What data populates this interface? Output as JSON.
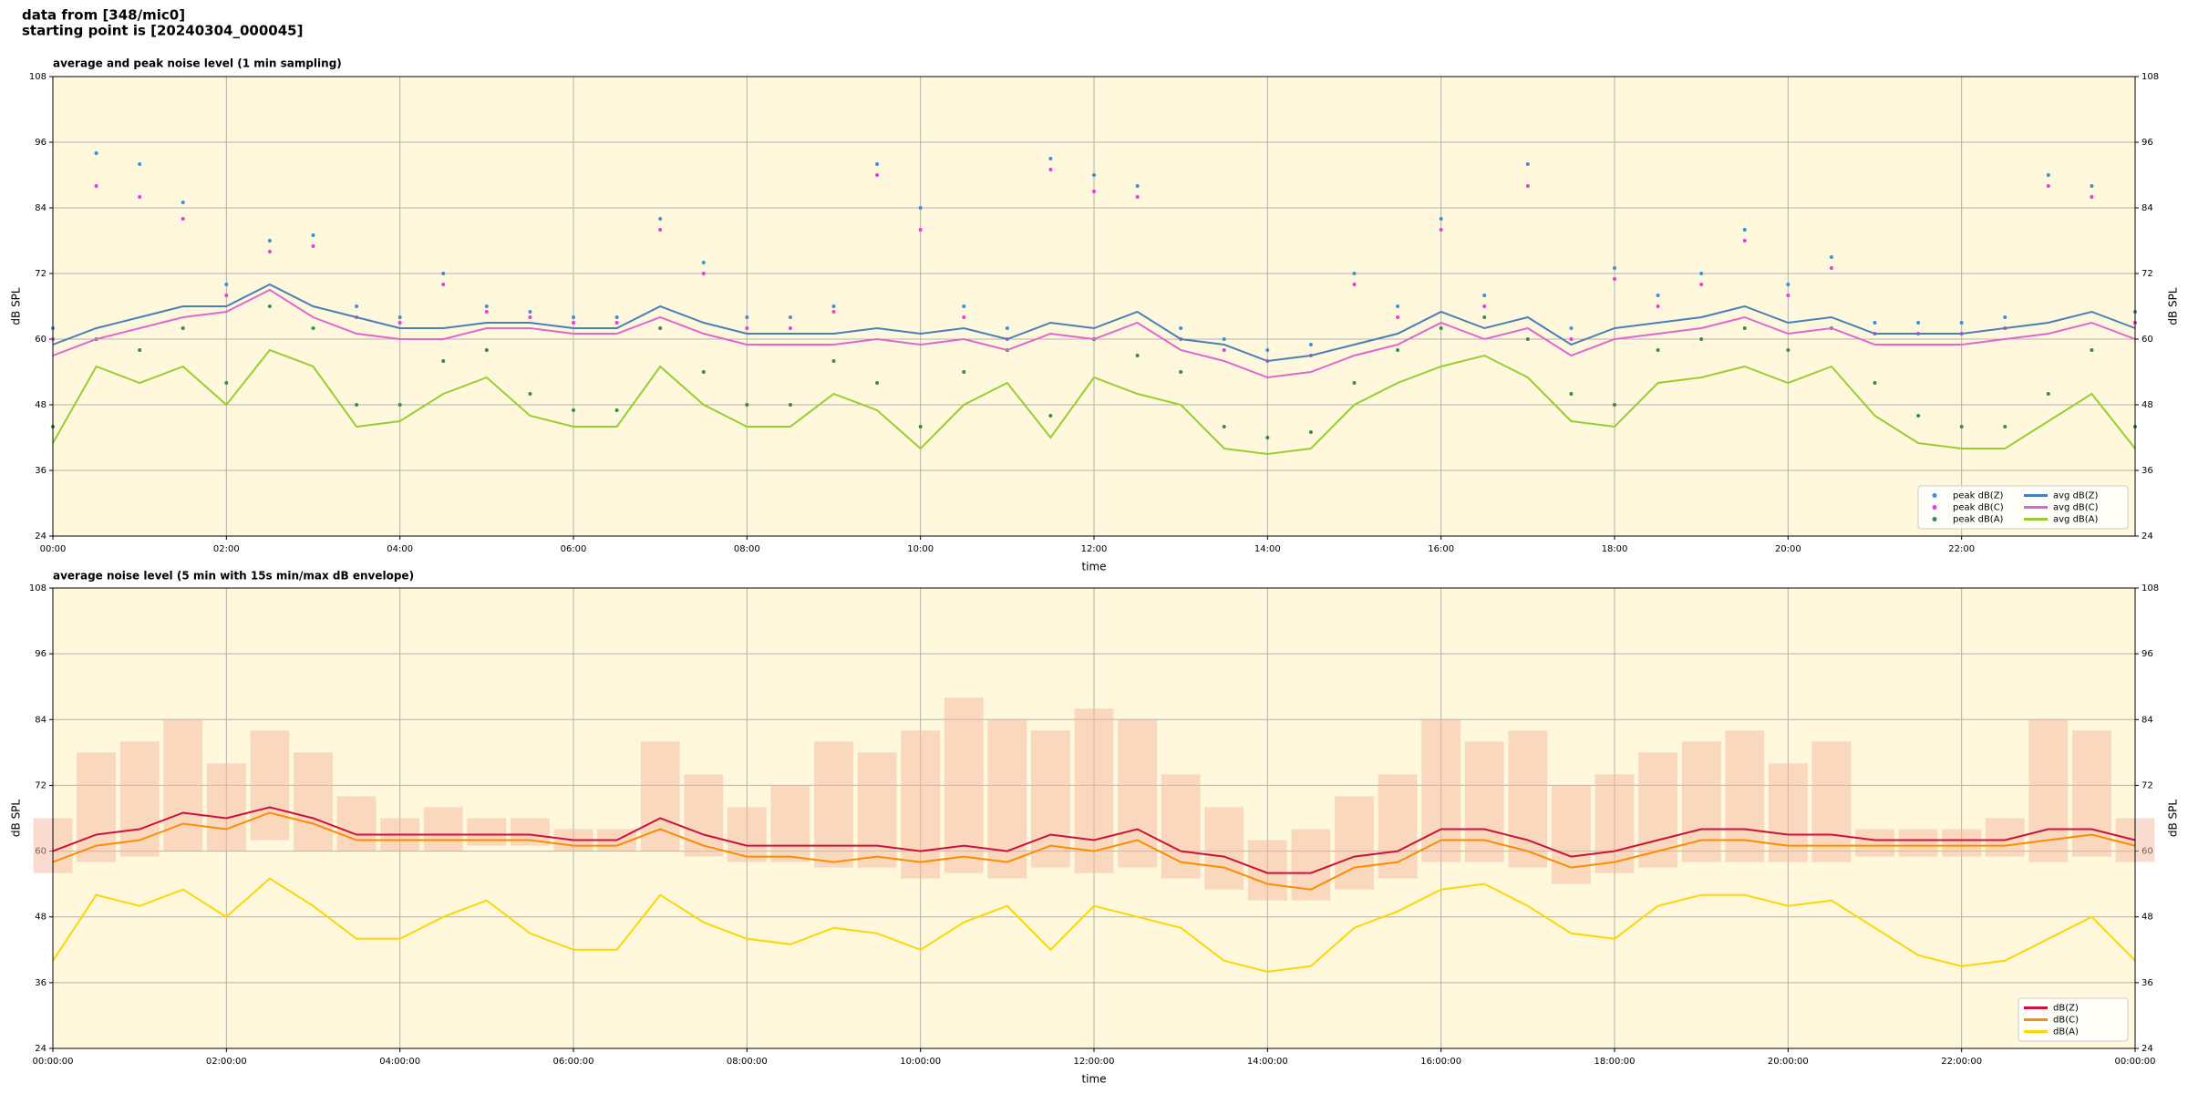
{
  "header": {
    "source": "data from [348/mic0]",
    "start": "starting point is [20240304_000045]"
  },
  "chart_data": [
    {
      "type": "line",
      "title": "average and peak noise level (1 min sampling)",
      "x_label": "time",
      "y_label": "dB SPL",
      "x": [
        0,
        0.5,
        1,
        1.5,
        2,
        2.5,
        3,
        3.5,
        4,
        4.5,
        5,
        5.5,
        6,
        6.5,
        7,
        7.5,
        8,
        8.5,
        9,
        9.5,
        10,
        10.5,
        11,
        11.5,
        12,
        12.5,
        13,
        13.5,
        14,
        14.5,
        15,
        15.5,
        16,
        16.5,
        17,
        17.5,
        18,
        18.5,
        19,
        19.5,
        20,
        20.5,
        21,
        21.5,
        22,
        22.5,
        23,
        23.5,
        24
      ],
      "xlim": [
        0,
        24
      ],
      "xticks": [
        {
          "value": 0,
          "label": "00:00"
        },
        {
          "value": 2,
          "label": "02:00"
        },
        {
          "value": 4,
          "label": "04:00"
        },
        {
          "value": 6,
          "label": "06:00"
        },
        {
          "value": 8,
          "label": "08:00"
        },
        {
          "value": 10,
          "label": "10:00"
        },
        {
          "value": 12,
          "label": "12:00"
        },
        {
          "value": 14,
          "label": "14:00"
        },
        {
          "value": 16,
          "label": "16:00"
        },
        {
          "value": 18,
          "label": "18:00"
        },
        {
          "value": 20,
          "label": "20:00"
        },
        {
          "value": 22,
          "label": "22:00"
        }
      ],
      "ylim": [
        24,
        108
      ],
      "yticks": [
        24,
        36,
        48,
        60,
        72,
        84,
        96,
        108
      ],
      "grid": true,
      "legend": "lower right",
      "legend_columns": 2,
      "series": [
        {
          "name": "peak dB(Z)",
          "type": "scatter",
          "color": "#3f8fd6",
          "values": [
            62,
            94,
            92,
            85,
            70,
            78,
            79,
            66,
            64,
            72,
            66,
            65,
            64,
            64,
            82,
            74,
            64,
            64,
            66,
            92,
            84,
            66,
            62,
            93,
            90,
            88,
            62,
            60,
            58,
            59,
            72,
            66,
            82,
            68,
            92,
            62,
            73,
            68,
            72,
            80,
            70,
            75,
            63,
            63,
            63,
            64,
            90,
            88,
            65
          ]
        },
        {
          "name": "peak dB(C)",
          "type": "scatter",
          "color": "#e83fd8",
          "values": [
            60,
            88,
            86,
            82,
            68,
            76,
            77,
            64,
            63,
            70,
            65,
            64,
            63,
            63,
            80,
            72,
            62,
            62,
            65,
            90,
            80,
            64,
            60,
            91,
            87,
            86,
            60,
            58,
            56,
            57,
            70,
            64,
            80,
            66,
            88,
            60,
            71,
            66,
            70,
            78,
            68,
            73,
            61,
            61,
            61,
            62,
            88,
            86,
            63
          ]
        },
        {
          "name": "peak dB(A)",
          "type": "scatter",
          "color": "#3a8a4a",
          "values": [
            44,
            60,
            58,
            62,
            52,
            66,
            62,
            48,
            48,
            56,
            58,
            50,
            47,
            47,
            62,
            54,
            48,
            48,
            56,
            52,
            44,
            54,
            58,
            46,
            60,
            57,
            54,
            44,
            42,
            43,
            52,
            58,
            62,
            64,
            60,
            50,
            48,
            58,
            60,
            62,
            58,
            62,
            52,
            46,
            44,
            44,
            50,
            58,
            44
          ]
        },
        {
          "name": "avg dB(Z)",
          "type": "line",
          "color": "#4a7fb5",
          "values": [
            59,
            62,
            64,
            66,
            66,
            70,
            66,
            64,
            62,
            62,
            63,
            63,
            62,
            62,
            66,
            63,
            61,
            61,
            61,
            62,
            61,
            62,
            60,
            63,
            62,
            65,
            60,
            59,
            56,
            57,
            59,
            61,
            65,
            62,
            64,
            59,
            62,
            63,
            64,
            66,
            63,
            64,
            61,
            61,
            61,
            62,
            63,
            65,
            62
          ]
        },
        {
          "name": "avg dB(C)",
          "type": "line",
          "color": "#e066d0",
          "values": [
            57,
            60,
            62,
            64,
            65,
            69,
            64,
            61,
            60,
            60,
            62,
            62,
            61,
            61,
            64,
            61,
            59,
            59,
            59,
            60,
            59,
            60,
            58,
            61,
            60,
            63,
            58,
            56,
            53,
            54,
            57,
            59,
            63,
            60,
            62,
            57,
            60,
            61,
            62,
            64,
            61,
            62,
            59,
            59,
            59,
            60,
            61,
            63,
            60
          ]
        },
        {
          "name": "avg dB(A)",
          "type": "line",
          "color": "#9acd32",
          "values": [
            41,
            55,
            52,
            55,
            48,
            58,
            55,
            44,
            45,
            50,
            53,
            46,
            44,
            44,
            55,
            48,
            44,
            44,
            50,
            47,
            40,
            48,
            52,
            42,
            53,
            50,
            48,
            40,
            39,
            40,
            48,
            52,
            55,
            57,
            53,
            45,
            44,
            52,
            53,
            55,
            52,
            55,
            46,
            41,
            40,
            40,
            45,
            50,
            40
          ]
        }
      ]
    },
    {
      "type": "line",
      "title": "average noise level (5 min with 15s min/max dB envelope)",
      "x_label": "time",
      "y_label": "dB SPL",
      "x": [
        0,
        0.5,
        1,
        1.5,
        2,
        2.5,
        3,
        3.5,
        4,
        4.5,
        5,
        5.5,
        6,
        6.5,
        7,
        7.5,
        8,
        8.5,
        9,
        9.5,
        10,
        10.5,
        11,
        11.5,
        12,
        12.5,
        13,
        13.5,
        14,
        14.5,
        15,
        15.5,
        16,
        16.5,
        17,
        17.5,
        18,
        18.5,
        19,
        19.5,
        20,
        20.5,
        21,
        21.5,
        22,
        22.5,
        23,
        23.5,
        24
      ],
      "xlim": [
        0,
        24
      ],
      "xticks": [
        {
          "value": 0,
          "label": "00:00:00"
        },
        {
          "value": 2,
          "label": "02:00:00"
        },
        {
          "value": 4,
          "label": "04:00:00"
        },
        {
          "value": 6,
          "label": "06:00:00"
        },
        {
          "value": 8,
          "label": "08:00:00"
        },
        {
          "value": 10,
          "label": "10:00:00"
        },
        {
          "value": 12,
          "label": "12:00:00"
        },
        {
          "value": 14,
          "label": "14:00:00"
        },
        {
          "value": 16,
          "label": "16:00:00"
        },
        {
          "value": 18,
          "label": "18:00:00"
        },
        {
          "value": 20,
          "label": "20:00:00"
        },
        {
          "value": 22,
          "label": "22:00:00"
        },
        {
          "value": 24,
          "label": "00:00:00"
        }
      ],
      "ylim": [
        24,
        108
      ],
      "yticks": [
        24,
        36,
        48,
        60,
        72,
        84,
        96,
        108
      ],
      "grid": true,
      "legend": "lower right",
      "legend_columns": 1,
      "envelope": {
        "color": "#f5b8a0",
        "max": [
          66,
          78,
          80,
          84,
          76,
          82,
          78,
          70,
          66,
          68,
          66,
          66,
          64,
          64,
          80,
          74,
          68,
          72,
          80,
          78,
          82,
          88,
          84,
          82,
          86,
          84,
          74,
          68,
          62,
          64,
          70,
          74,
          84,
          80,
          82,
          72,
          74,
          78,
          80,
          82,
          76,
          80,
          64,
          64,
          64,
          66,
          84,
          82,
          66
        ],
        "min": [
          56,
          58,
          59,
          60,
          60,
          62,
          60,
          60,
          60,
          60,
          61,
          61,
          60,
          60,
          60,
          59,
          58,
          58,
          57,
          57,
          55,
          56,
          55,
          57,
          56,
          57,
          55,
          53,
          51,
          51,
          53,
          55,
          58,
          58,
          57,
          54,
          56,
          57,
          58,
          58,
          58,
          58,
          59,
          59,
          59,
          59,
          58,
          59,
          58
        ]
      },
      "series": [
        {
          "name": "dB(Z)",
          "type": "line",
          "color": "#d0103a",
          "values": [
            60,
            63,
            64,
            67,
            66,
            68,
            66,
            63,
            63,
            63,
            63,
            63,
            62,
            62,
            66,
            63,
            61,
            61,
            61,
            61,
            60,
            61,
            60,
            63,
            62,
            64,
            60,
            59,
            56,
            56,
            59,
            60,
            64,
            64,
            62,
            59,
            60,
            62,
            64,
            64,
            63,
            63,
            62,
            62,
            62,
            62,
            64,
            64,
            62
          ]
        },
        {
          "name": "dB(C)",
          "type": "line",
          "color": "#ff8c00",
          "values": [
            58,
            61,
            62,
            65,
            64,
            67,
            65,
            62,
            62,
            62,
            62,
            62,
            61,
            61,
            64,
            61,
            59,
            59,
            58,
            59,
            58,
            59,
            58,
            61,
            60,
            62,
            58,
            57,
            54,
            53,
            57,
            58,
            62,
            62,
            60,
            57,
            58,
            60,
            62,
            62,
            61,
            61,
            61,
            61,
            61,
            61,
            62,
            63,
            61
          ]
        },
        {
          "name": "dB(A)",
          "type": "line",
          "color": "#ffd700",
          "values": [
            40,
            52,
            50,
            53,
            48,
            55,
            50,
            44,
            44,
            48,
            51,
            45,
            42,
            42,
            52,
            47,
            44,
            43,
            46,
            45,
            42,
            47,
            50,
            42,
            50,
            48,
            46,
            40,
            38,
            39,
            46,
            49,
            53,
            54,
            50,
            45,
            44,
            50,
            52,
            52,
            50,
            51,
            46,
            41,
            39,
            40,
            44,
            48,
            40
          ]
        }
      ]
    }
  ]
}
